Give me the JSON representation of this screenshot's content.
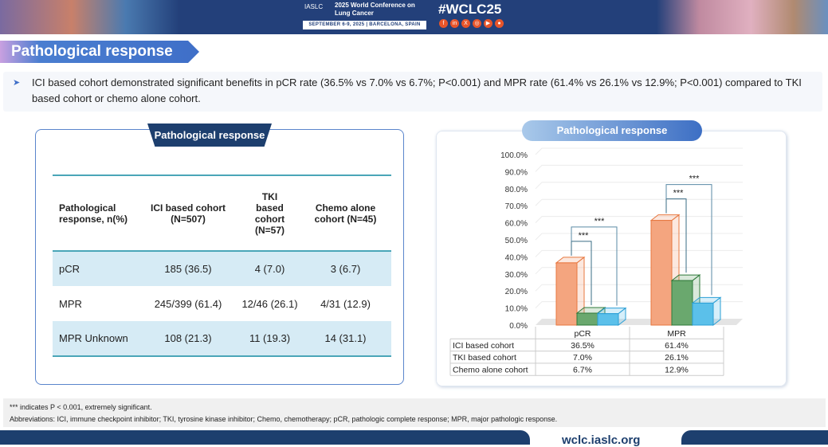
{
  "banner": {
    "org": "IASLC",
    "conference": "2025 World Conference on Lung Cancer",
    "date_location": "SEPTEMBER 6-9, 2025 | BARCELONA, SPAIN",
    "hashtag": "#WCLC25",
    "social_icons": [
      "facebook-icon",
      "linkedin-icon",
      "x-icon",
      "instagram-icon",
      "youtube-icon",
      "wechat-icon"
    ]
  },
  "section_title": "Pathological response",
  "bullet": "ICI based cohort demonstrated significant benefits in pCR rate (36.5% vs 7.0% vs 6.7%; P<0.001) and MPR rate (61.4% vs 26.1% vs 12.9%; P<0.001) compared to TKI based cohort or chemo alone cohort.",
  "table_panel": {
    "title": "Pathological response",
    "headers": [
      "Pathological response, n(%)",
      "ICI based cohort (N=507)",
      "TKI based cohort (N=57)",
      "Chemo alone cohort (N=45)"
    ],
    "rows": [
      [
        "pCR",
        "185 (36.5)",
        "4 (7.0)",
        "3 (6.7)"
      ],
      [
        "MPR",
        "245/399 (61.4)",
        "12/46 (26.1)",
        "4/31 (12.9)"
      ],
      [
        "MPR Unknown",
        "108 (21.3)",
        "11 (19.3)",
        "14 (31.1)"
      ]
    ]
  },
  "chart_panel_title": "Pathological response",
  "chart_data": {
    "type": "bar",
    "categories": [
      "pCR",
      "MPR"
    ],
    "series": [
      {
        "name": "ICI based cohort",
        "values": [
          36.5,
          61.4
        ],
        "color": "#f4a57f"
      },
      {
        "name": "TKI based cohort",
        "values": [
          7.0,
          26.1
        ],
        "color": "#6aa86e"
      },
      {
        "name": "Chemo alone cohort",
        "values": [
          6.7,
          12.9
        ],
        "color": "#5bc0ea"
      }
    ],
    "data_table": [
      [
        "36.5%",
        "61.4%"
      ],
      [
        "7.0%",
        "26.1%"
      ],
      [
        "6.7%",
        "12.9%"
      ]
    ],
    "yticks": [
      "0.0%",
      "10.0%",
      "20.0%",
      "30.0%",
      "40.0%",
      "50.0%",
      "60.0%",
      "70.0%",
      "80.0%",
      "90.0%",
      "100.0%"
    ],
    "ylim": [
      0,
      100
    ],
    "significance_label": "***",
    "grid": true,
    "style": "3d"
  },
  "footnote": {
    "sig": "*** indicates P < 0.001, extremely significant.",
    "abbrev": "Abbreviations: ICI, immune checkpoint inhibitor; TKI, tyrosine kinase inhibitor; Chemo, chemotherapy;  pCR, pathologic complete response; MPR, major pathologic response."
  },
  "url": "wclc.iaslc.org"
}
